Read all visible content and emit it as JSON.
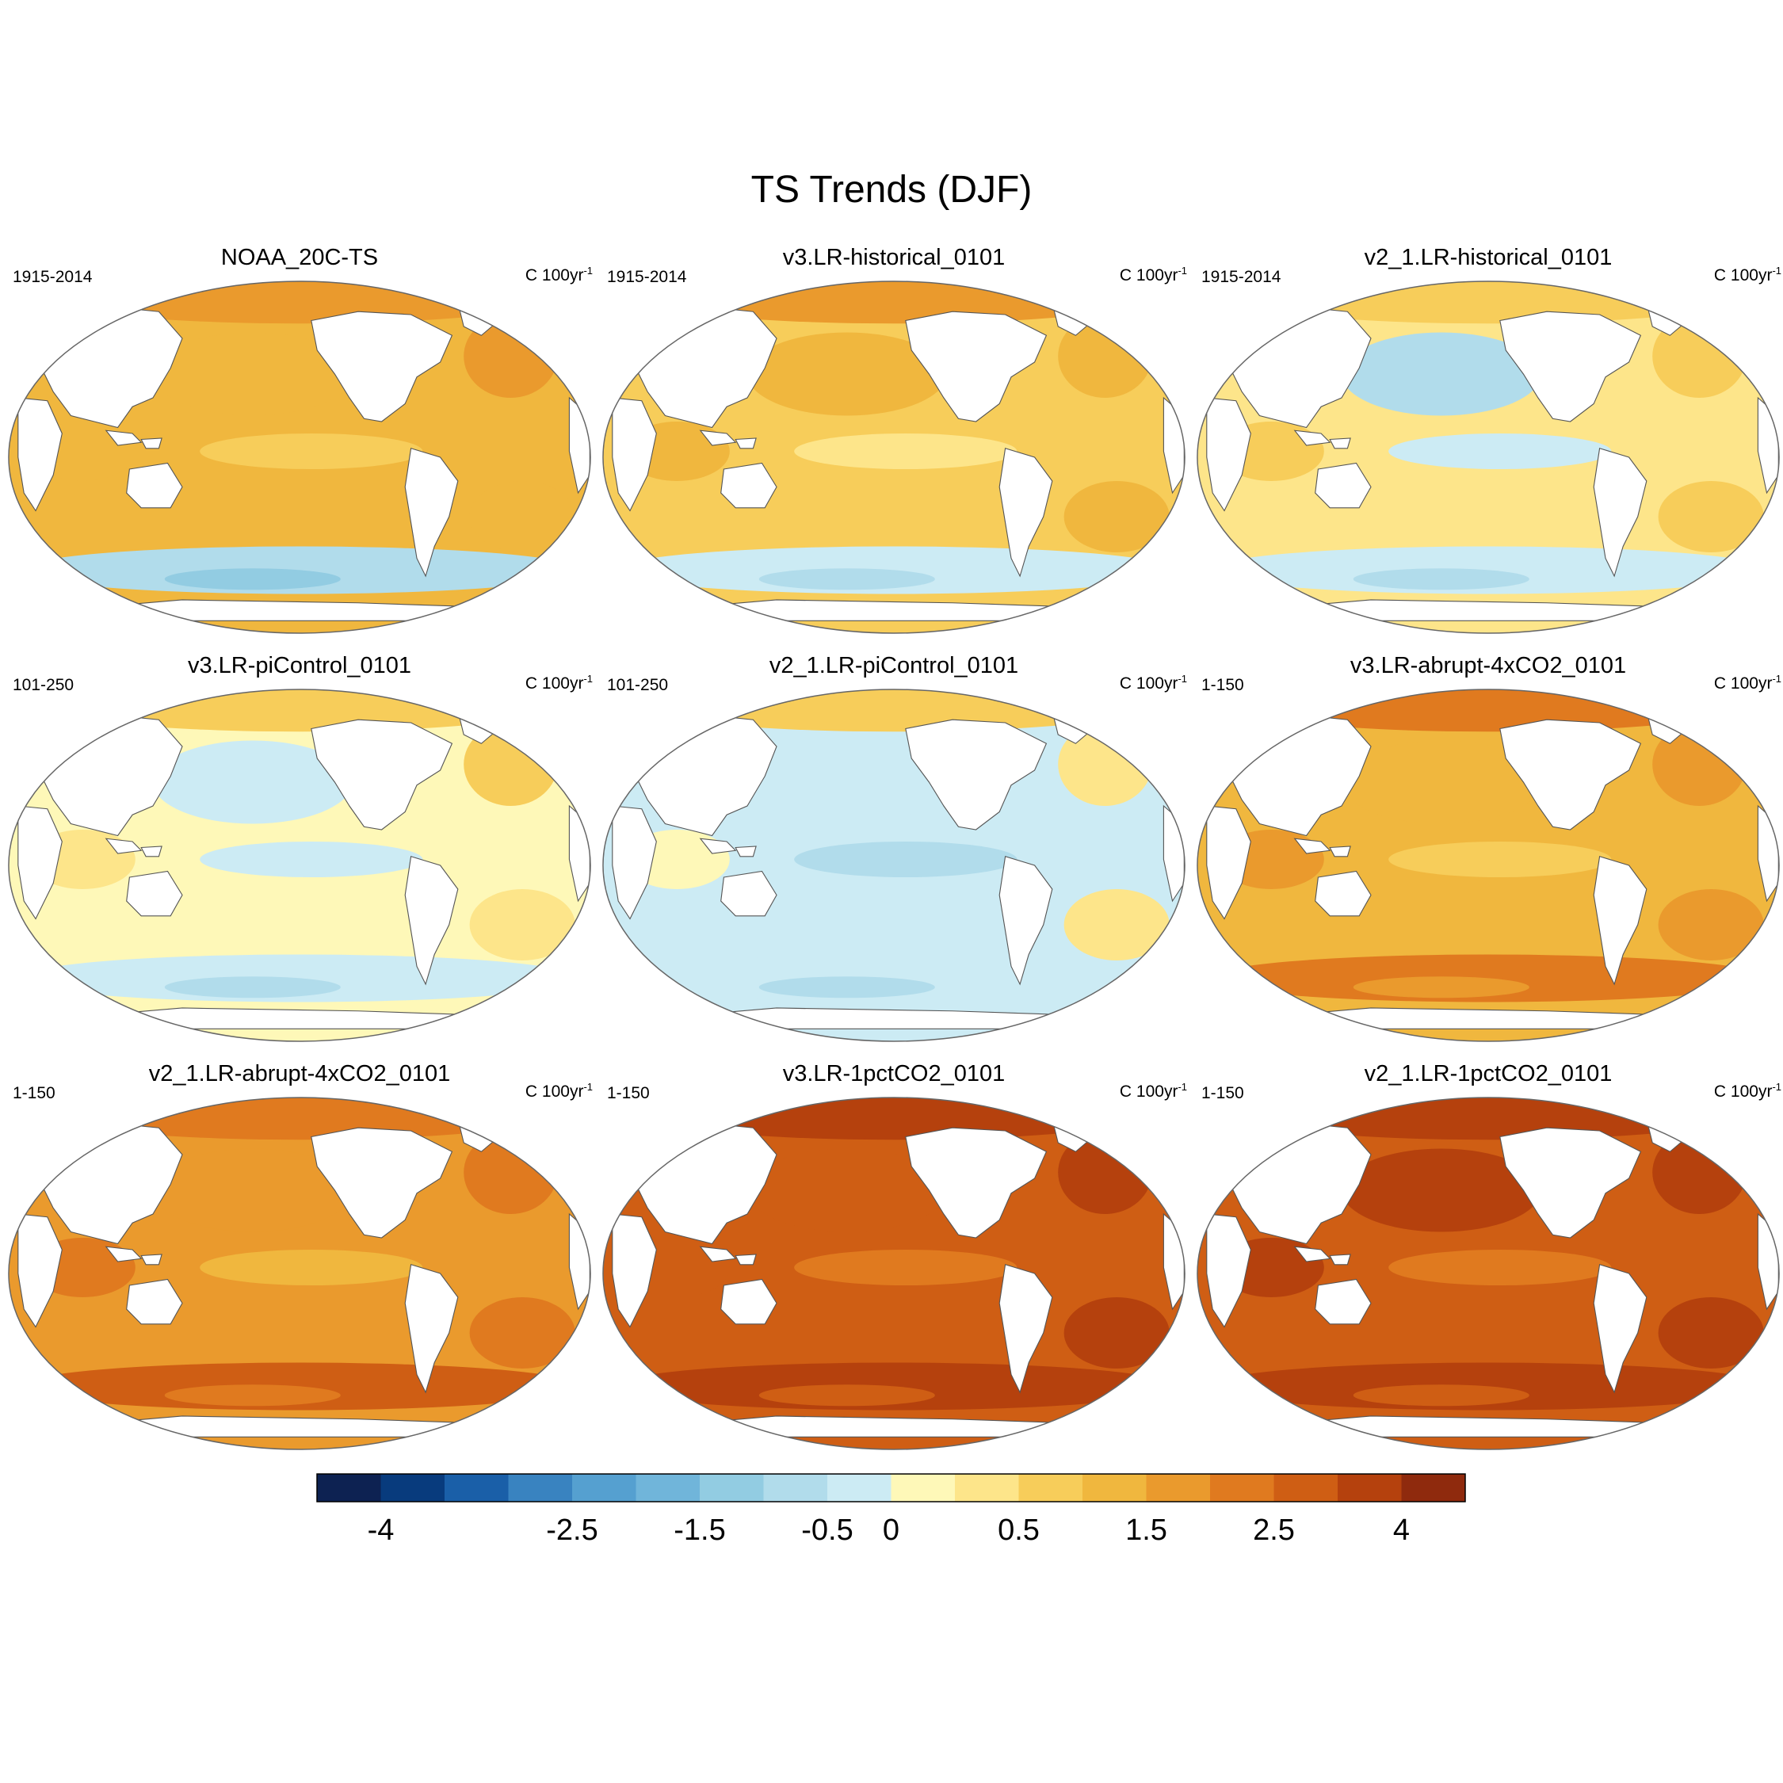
{
  "chart_data": {
    "type": "contour-map",
    "title": "TS Trends (DJF)",
    "units_label": "C 100yr",
    "units_exponent": "-1",
    "panels": [
      {
        "name": "NOAA_20C-TS",
        "period": "1915-2014",
        "mean_trend": 1.0,
        "southern_ocean_trend": -1.0,
        "north_pacific_trend": 1.2
      },
      {
        "name": "v3.LR-historical_0101",
        "period": "1915-2014",
        "mean_trend": 0.9,
        "southern_ocean_trend": -0.3,
        "north_pacific_trend": 1.0
      },
      {
        "name": "v2_1.LR-historical_0101",
        "period": "1915-2014",
        "mean_trend": 0.3,
        "southern_ocean_trend": -0.4,
        "north_pacific_trend": -0.9
      },
      {
        "name": "v3.LR-piControl_0101",
        "period": "101-250",
        "mean_trend": 0.1,
        "southern_ocean_trend": -0.2,
        "north_pacific_trend": -0.1
      },
      {
        "name": "v2_1.LR-piControl_0101",
        "period": "101-250",
        "mean_trend": -0.05,
        "southern_ocean_trend": -0.3,
        "north_pacific_trend": -0.2
      },
      {
        "name": "v3.LR-abrupt-4xCO2_0101",
        "period": "1-150",
        "mean_trend": 1.4,
        "southern_ocean_trend": 2.3,
        "north_pacific_trend": 1.4
      },
      {
        "name": "v2_1.LR-abrupt-4xCO2_0101",
        "period": "1-150",
        "mean_trend": 1.8,
        "southern_ocean_trend": 2.5,
        "north_pacific_trend": 1.7
      },
      {
        "name": "v3.LR-1pctCO2_0101",
        "period": "1-150",
        "mean_trend": 2.7,
        "southern_ocean_trend": 3.0,
        "north_pacific_trend": 2.8
      },
      {
        "name": "v2_1.LR-1pctCO2_0101",
        "period": "1-150",
        "mean_trend": 2.9,
        "southern_ocean_trend": 3.2,
        "north_pacific_trend": 3.0
      }
    ],
    "colorbar": {
      "levels": [
        -4.5,
        -4,
        -3.5,
        -3,
        -2.5,
        -2,
        -1.5,
        -1,
        -0.5,
        0,
        0.25,
        0.5,
        1,
        1.5,
        2,
        2.5,
        3,
        4,
        4.5
      ],
      "tick_labels": [
        "-4",
        "-2.5",
        "-1.5",
        "-0.5",
        "0",
        "0.5",
        "1.5",
        "2.5",
        "4"
      ],
      "tick_boundary_index": [
        1,
        4,
        6,
        8,
        9,
        11,
        13,
        15,
        17
      ],
      "colors": [
        "#0d2252",
        "#083b7d",
        "#1a5fa8",
        "#3983c0",
        "#55a0d0",
        "#70b5da",
        "#92cce2",
        "#b1dceb",
        "#ccebf4",
        "#fef8b8",
        "#fde58a",
        "#f7cd5a",
        "#f0b73e",
        "#ea9a2d",
        "#e07a1f",
        "#cf5e14",
        "#b5410d",
        "#8f2a0d"
      ]
    }
  }
}
